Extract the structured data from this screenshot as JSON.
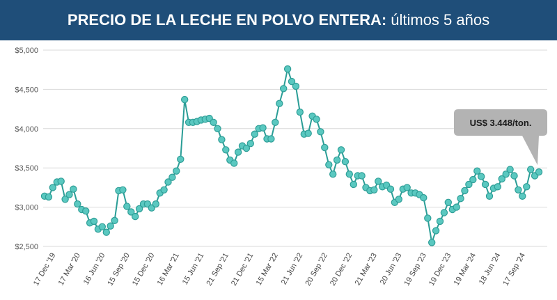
{
  "title": {
    "bold": "PRECIO DE LA LECHE EN POLVO ENTERA:",
    "regular": "últimos 5 años"
  },
  "colors": {
    "title_bg": "#1f4e79",
    "line": "#2a9d96",
    "marker_fill": "#5ac8c0",
    "marker_stroke": "#2f9e97",
    "grid": "#d9d9d9",
    "callout_bg": "#b3b3b3"
  },
  "callout": {
    "text": "US$ 3.448/ton."
  },
  "chart_data": {
    "type": "line",
    "title": "PRECIO DE LA LECHE EN POLVO ENTERA: últimos 5 años",
    "ylim": [
      2500,
      5000
    ],
    "y_ticks": [
      2500,
      3000,
      3500,
      4000,
      4500,
      5000
    ],
    "y_tick_labels": [
      "$2,500",
      "$3,000",
      "$3,500",
      "$4,000",
      "$4,500",
      "$5,000"
    ],
    "x_tick_labels": [
      {
        "label": "17 Dec '19",
        "index": 2
      },
      {
        "label": "17 Mar '20",
        "index": 8
      },
      {
        "label": "16 Jun '20",
        "index": 14
      },
      {
        "label": "15 Sep '20",
        "index": 20
      },
      {
        "label": "15 Dec '20",
        "index": 26
      },
      {
        "label": "16 Mar '21",
        "index": 32
      },
      {
        "label": "15 Jun '21",
        "index": 38
      },
      {
        "label": "21 Sep '21",
        "index": 44
      },
      {
        "label": "21 Dec '21",
        "index": 50
      },
      {
        "label": "15 Mar '22",
        "index": 56
      },
      {
        "label": "21 Jun '22",
        "index": 62
      },
      {
        "label": "20 Sep '22",
        "index": 68
      },
      {
        "label": "20 Dec '22",
        "index": 74
      },
      {
        "label": "21 Mar '23",
        "index": 80
      },
      {
        "label": "20 Jun '23",
        "index": 86
      },
      {
        "label": "19 Sep '23",
        "index": 92
      },
      {
        "label": "19 Dec '23",
        "index": 98
      },
      {
        "label": "19 Mar '24",
        "index": 104
      },
      {
        "label": "18 Jun '24",
        "index": 110
      },
      {
        "label": "17 Sep '24",
        "index": 116
      }
    ],
    "series": [
      {
        "values": [
          3140,
          3130,
          3250,
          3320,
          3330,
          3100,
          3160,
          3230,
          3040,
          2970,
          2950,
          2800,
          2820,
          2720,
          2750,
          2680,
          2760,
          2830,
          3210,
          3220,
          3010,
          2940,
          2880,
          2980,
          3040,
          3040,
          2990,
          3040,
          3180,
          3220,
          3320,
          3380,
          3460,
          3610,
          4370,
          4080,
          4080,
          4090,
          4110,
          4120,
          4130,
          4080,
          4000,
          3860,
          3730,
          3600,
          3560,
          3700,
          3780,
          3750,
          3810,
          3930,
          4000,
          4010,
          3870,
          3870,
          4080,
          4320,
          4510,
          4760,
          4600,
          4540,
          4210,
          3930,
          3940,
          4160,
          4120,
          3960,
          3760,
          3540,
          3420,
          3600,
          3730,
          3580,
          3420,
          3290,
          3400,
          3400,
          3250,
          3210,
          3220,
          3330,
          3260,
          3280,
          3230,
          3060,
          3100,
          3230,
          3250,
          3180,
          3180,
          3160,
          3120,
          2860,
          2550,
          2700,
          2820,
          2930,
          3060,
          2970,
          3000,
          3110,
          3210,
          3290,
          3350,
          3460,
          3390,
          3290,
          3140,
          3240,
          3260,
          3360,
          3420,
          3480,
          3400,
          3220,
          3140,
          3260,
          3480,
          3400,
          3448
        ]
      }
    ]
  }
}
